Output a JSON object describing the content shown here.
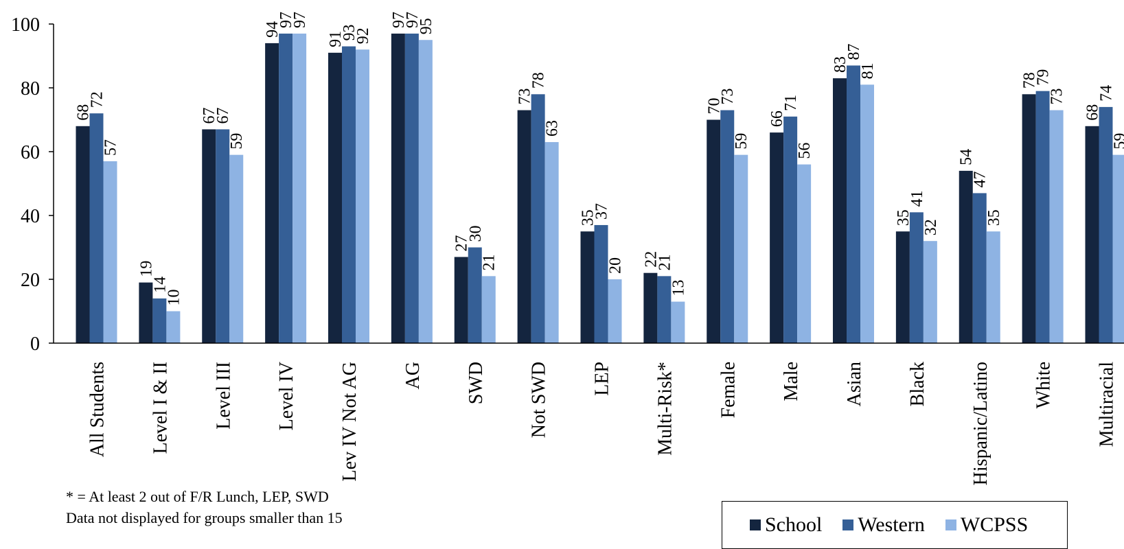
{
  "chart_data": {
    "type": "bar",
    "categories": [
      "All Students",
      "Level I & II",
      "Level III",
      "Level IV",
      "Lev IV Not AG",
      "AG",
      "SWD",
      "Not SWD",
      "LEP",
      "Multi-Risk*",
      "Female",
      "Male",
      "Asian",
      "Black",
      "Hispanic/Latino",
      "White",
      "Multiracial"
    ],
    "series": [
      {
        "name": "School",
        "color": "#14253f",
        "values": [
          68,
          19,
          67,
          94,
          91,
          97,
          27,
          73,
          35,
          22,
          70,
          66,
          83,
          35,
          54,
          78,
          68
        ]
      },
      {
        "name": "Western",
        "color": "#355f96",
        "values": [
          72,
          14,
          67,
          97,
          93,
          97,
          30,
          78,
          37,
          21,
          73,
          71,
          87,
          41,
          47,
          79,
          74
        ]
      },
      {
        "name": "WCPSS",
        "color": "#8eb3e3",
        "values": [
          57,
          10,
          59,
          97,
          92,
          95,
          21,
          63,
          20,
          13,
          59,
          56,
          81,
          32,
          35,
          73,
          59
        ]
      }
    ],
    "yticks": [
      "0",
      "20",
      "40",
      "60",
      "80",
      "100"
    ],
    "ylim": [
      0,
      100
    ],
    "grid": false,
    "legend_position": "bottom-right"
  },
  "notes": {
    "line1": "* = At least 2 out of F/R Lunch, LEP, SWD",
    "line2": "Data not displayed for groups smaller than 15"
  },
  "legend": [
    {
      "label": "School",
      "color": "#14253f"
    },
    {
      "label": "Western",
      "color": "#355f96"
    },
    {
      "label": "WCPSS",
      "color": "#8eb3e3"
    }
  ]
}
